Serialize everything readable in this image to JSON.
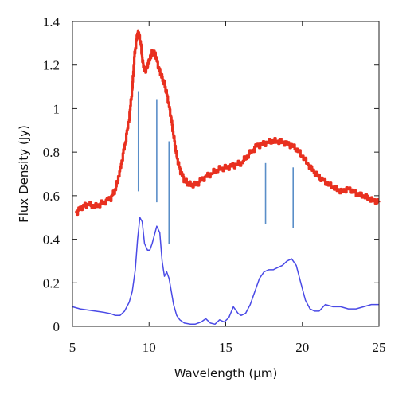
{
  "chart_data": {
    "type": "line",
    "xlabel": "Wavelength (µm)",
    "ylabel": "Flux Density (Jy)",
    "xlim": [
      5,
      25
    ],
    "ylim": [
      0,
      1.4
    ],
    "x_ticks": [
      5,
      10,
      15,
      20,
      25
    ],
    "x_tick_labels": [
      "5",
      "10",
      "15",
      "20",
      "25"
    ],
    "y_ticks": [
      0,
      0.2,
      0.4,
      0.6,
      0.8,
      1.0,
      1.2,
      1.4
    ],
    "y_tick_labels": [
      "0",
      "0.2",
      "0.4",
      "0.6",
      "0.8",
      "1",
      "1.2",
      "1.4"
    ],
    "grid": false,
    "legend": "none",
    "series": [
      {
        "color": "#e8301f",
        "style": "thick stepped noisy line",
        "x": [
          5.2,
          5.6,
          6.0,
          6.5,
          7.0,
          7.5,
          7.8,
          8.1,
          8.4,
          8.7,
          8.9,
          9.05,
          9.2,
          9.3,
          9.45,
          9.6,
          9.75,
          9.9,
          10.05,
          10.2,
          10.4,
          10.6,
          10.8,
          11.0,
          11.2,
          11.4,
          11.6,
          11.8,
          12.0,
          12.3,
          12.6,
          13.0,
          13.5,
          14.0,
          14.5,
          15.0,
          15.5,
          16.0,
          16.5,
          17.0,
          17.5,
          18.0,
          18.5,
          19.0,
          19.5,
          20.0,
          20.5,
          21.0,
          21.5,
          22.0,
          22.5,
          23.0,
          23.5,
          24.0,
          24.5,
          25.0
        ],
        "y": [
          0.52,
          0.55,
          0.56,
          0.55,
          0.57,
          0.59,
          0.63,
          0.72,
          0.83,
          0.96,
          1.1,
          1.25,
          1.33,
          1.35,
          1.3,
          1.2,
          1.17,
          1.2,
          1.23,
          1.26,
          1.25,
          1.19,
          1.15,
          1.11,
          1.05,
          0.97,
          0.87,
          0.78,
          0.72,
          0.67,
          0.65,
          0.65,
          0.68,
          0.7,
          0.72,
          0.73,
          0.74,
          0.75,
          0.79,
          0.83,
          0.84,
          0.85,
          0.85,
          0.84,
          0.82,
          0.78,
          0.73,
          0.69,
          0.66,
          0.64,
          0.62,
          0.63,
          0.61,
          0.6,
          0.58,
          0.57
        ]
      },
      {
        "color": "#4a4ae6",
        "style": "thin smooth line",
        "x": [
          5.0,
          5.5,
          6.0,
          6.5,
          7.0,
          7.5,
          7.8,
          8.1,
          8.4,
          8.7,
          8.9,
          9.1,
          9.25,
          9.4,
          9.55,
          9.7,
          9.9,
          10.05,
          10.2,
          10.35,
          10.5,
          10.7,
          10.85,
          11.0,
          11.15,
          11.3,
          11.45,
          11.6,
          11.8,
          12.0,
          12.3,
          12.7,
          13.0,
          13.4,
          13.7,
          14.0,
          14.3,
          14.6,
          14.9,
          15.2,
          15.5,
          15.8,
          16.0,
          16.3,
          16.6,
          16.9,
          17.2,
          17.5,
          17.8,
          18.1,
          18.4,
          18.7,
          19.0,
          19.3,
          19.6,
          19.9,
          20.2,
          20.5,
          20.8,
          21.1,
          21.5,
          22.0,
          22.5,
          23.0,
          23.5,
          24.0,
          24.5,
          25.0
        ],
        "y": [
          0.09,
          0.08,
          0.075,
          0.07,
          0.065,
          0.058,
          0.05,
          0.05,
          0.07,
          0.11,
          0.16,
          0.26,
          0.4,
          0.5,
          0.48,
          0.38,
          0.35,
          0.35,
          0.38,
          0.42,
          0.46,
          0.43,
          0.3,
          0.23,
          0.25,
          0.22,
          0.16,
          0.1,
          0.05,
          0.03,
          0.015,
          0.01,
          0.01,
          0.02,
          0.035,
          0.015,
          0.01,
          0.03,
          0.02,
          0.04,
          0.09,
          0.06,
          0.05,
          0.06,
          0.1,
          0.16,
          0.22,
          0.25,
          0.26,
          0.26,
          0.27,
          0.28,
          0.3,
          0.31,
          0.28,
          0.2,
          0.12,
          0.08,
          0.07,
          0.07,
          0.1,
          0.09,
          0.09,
          0.08,
          0.08,
          0.09,
          0.1,
          0.1
        ]
      }
    ],
    "annotations": [
      {
        "type": "vline",
        "x": 9.3,
        "y_range": [
          0.62,
          1.08
        ],
        "color": "#5a8ec8"
      },
      {
        "type": "vline",
        "x": 10.5,
        "y_range": [
          0.57,
          1.04
        ],
        "color": "#5a8ec8"
      },
      {
        "type": "vline",
        "x": 11.3,
        "y_range": [
          0.38,
          0.85
        ],
        "color": "#5a8ec8"
      },
      {
        "type": "vline",
        "x": 17.6,
        "y_range": [
          0.47,
          0.75
        ],
        "color": "#5a8ec8"
      },
      {
        "type": "vline",
        "x": 19.4,
        "y_range": [
          0.45,
          0.73
        ],
        "color": "#5a8ec8"
      }
    ]
  }
}
